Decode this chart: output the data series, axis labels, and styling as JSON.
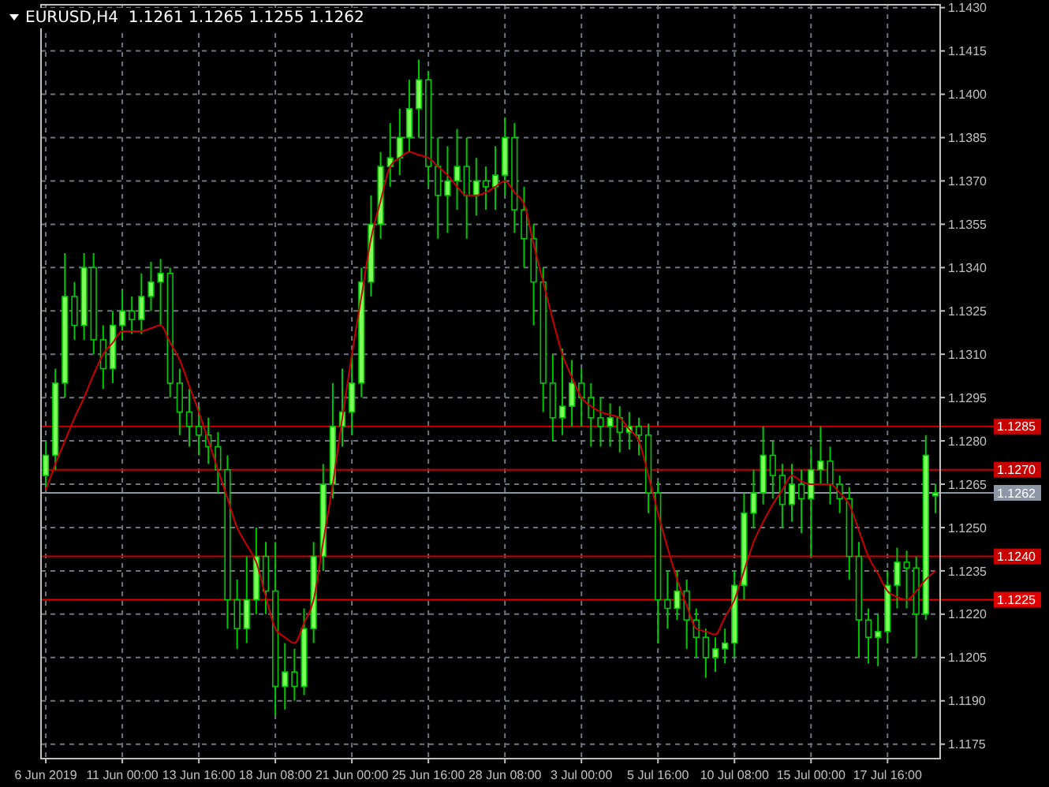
{
  "chart_data": {
    "type": "candlestick",
    "title": "EURUSD,H4  1.1261 1.1265 1.1255 1.1262",
    "categories": [
      "6 Jun 2019",
      null,
      null,
      null,
      null,
      null,
      null,
      null,
      "11 Jun 00:00",
      null,
      null,
      null,
      null,
      null,
      null,
      null,
      "13 Jun 16:00",
      null,
      null,
      null,
      null,
      null,
      null,
      null,
      "18 Jun 08:00",
      null,
      null,
      null,
      null,
      null,
      null,
      null,
      "21 Jun 00:00",
      null,
      null,
      null,
      null,
      null,
      null,
      null,
      "25 Jun 16:00",
      null,
      null,
      null,
      null,
      null,
      null,
      null,
      "28 Jun 08:00",
      null,
      null,
      null,
      null,
      null,
      null,
      null,
      "3 Jul 00:00",
      null,
      null,
      null,
      null,
      null,
      null,
      null,
      "5 Jul 16:00",
      null,
      null,
      null,
      null,
      null,
      null,
      null,
      "10 Jul 08:00",
      null,
      null,
      null,
      null,
      null,
      null,
      null,
      "15 Jul 00:00",
      null,
      null,
      null,
      null,
      null,
      null,
      null,
      "17 Jul 16:00",
      null,
      null,
      null,
      null,
      null
    ],
    "color": "#00c800",
    "ohlc": [
      [
        1.1268,
        1.128,
        1.1263,
        1.1275
      ],
      [
        1.1275,
        1.1305,
        1.127,
        1.13
      ],
      [
        1.13,
        1.1345,
        1.1295,
        1.133
      ],
      [
        1.133,
        1.1335,
        1.1315,
        1.132
      ],
      [
        1.132,
        1.1345,
        1.1315,
        1.134
      ],
      [
        1.134,
        1.1345,
        1.131,
        1.1315
      ],
      [
        1.1315,
        1.132,
        1.1298,
        1.1305
      ],
      [
        1.1305,
        1.1325,
        1.13,
        1.132
      ],
      [
        1.132,
        1.1332,
        1.1315,
        1.1325
      ],
      [
        1.1325,
        1.133,
        1.1317,
        1.1322
      ],
      [
        1.1322,
        1.1338,
        1.1317,
        1.133
      ],
      [
        1.133,
        1.1342,
        1.1325,
        1.1335
      ],
      [
        1.1335,
        1.1343,
        1.132,
        1.1338
      ],
      [
        1.1338,
        1.134,
        1.1295,
        1.13
      ],
      [
        1.13,
        1.1305,
        1.1282,
        1.129
      ],
      [
        1.129,
        1.1298,
        1.1278,
        1.1285
      ],
      [
        1.1285,
        1.1292,
        1.1275,
        1.1282
      ],
      [
        1.1282,
        1.1288,
        1.1272,
        1.1278
      ],
      [
        1.1278,
        1.1283,
        1.1262,
        1.127
      ],
      [
        1.127,
        1.1275,
        1.1215,
        1.1225
      ],
      [
        1.1225,
        1.1232,
        1.1208,
        1.1215
      ],
      [
        1.1215,
        1.124,
        1.121,
        1.1225
      ],
      [
        1.1225,
        1.125,
        1.122,
        1.124
      ],
      [
        1.124,
        1.1245,
        1.122,
        1.1228
      ],
      [
        1.1228,
        1.1245,
        1.1185,
        1.1195
      ],
      [
        1.1195,
        1.121,
        1.1187,
        1.12
      ],
      [
        1.12,
        1.1208,
        1.119,
        1.1195
      ],
      [
        1.1195,
        1.1222,
        1.1192,
        1.1215
      ],
      [
        1.1215,
        1.1245,
        1.121,
        1.124
      ],
      [
        1.124,
        1.1272,
        1.1235,
        1.1265
      ],
      [
        1.1265,
        1.13,
        1.126,
        1.1285
      ],
      [
        1.1285,
        1.1305,
        1.1278,
        1.129
      ],
      [
        1.129,
        1.131,
        1.1282,
        1.13
      ],
      [
        1.13,
        1.134,
        1.1295,
        1.1335
      ],
      [
        1.1335,
        1.1365,
        1.133,
        1.1355
      ],
      [
        1.1355,
        1.138,
        1.135,
        1.1375
      ],
      [
        1.1375,
        1.139,
        1.1368,
        1.1378
      ],
      [
        1.1378,
        1.1395,
        1.1372,
        1.1385
      ],
      [
        1.1385,
        1.1405,
        1.138,
        1.1395
      ],
      [
        1.1395,
        1.1412,
        1.1385,
        1.1405
      ],
      [
        1.1405,
        1.1408,
        1.1368,
        1.1375
      ],
      [
        1.1375,
        1.1385,
        1.135,
        1.1365
      ],
      [
        1.1365,
        1.1382,
        1.1352,
        1.137
      ],
      [
        1.137,
        1.1388,
        1.136,
        1.1375
      ],
      [
        1.1375,
        1.1385,
        1.135,
        1.1365
      ],
      [
        1.1365,
        1.1378,
        1.1358,
        1.137
      ],
      [
        1.137,
        1.1375,
        1.136,
        1.1368
      ],
      [
        1.1368,
        1.1382,
        1.136,
        1.1372
      ],
      [
        1.1372,
        1.1392,
        1.1365,
        1.1385
      ],
      [
        1.1385,
        1.139,
        1.1352,
        1.136
      ],
      [
        1.136,
        1.1368,
        1.134,
        1.135
      ],
      [
        1.135,
        1.1355,
        1.132,
        1.1335
      ],
      [
        1.1335,
        1.134,
        1.129,
        1.13
      ],
      [
        1.13,
        1.131,
        1.128,
        1.1288
      ],
      [
        1.1288,
        1.1312,
        1.1282,
        1.1292
      ],
      [
        1.1292,
        1.1308,
        1.1285,
        1.13
      ],
      [
        1.13,
        1.1305,
        1.1285,
        1.1295
      ],
      [
        1.1295,
        1.13,
        1.1278,
        1.1288
      ],
      [
        1.1288,
        1.1295,
        1.1278,
        1.1285
      ],
      [
        1.1285,
        1.1293,
        1.1278,
        1.1288
      ],
      [
        1.1288,
        1.1292,
        1.1276,
        1.1283
      ],
      [
        1.1283,
        1.129,
        1.1277,
        1.1285
      ],
      [
        1.1285,
        1.1288,
        1.1275,
        1.1282
      ],
      [
        1.1282,
        1.1286,
        1.1255,
        1.1262
      ],
      [
        1.1262,
        1.1266,
        1.121,
        1.1225
      ],
      [
        1.1225,
        1.1235,
        1.1215,
        1.1222
      ],
      [
        1.1222,
        1.1235,
        1.1218,
        1.1228
      ],
      [
        1.1228,
        1.1232,
        1.1208,
        1.1218
      ],
      [
        1.1218,
        1.1222,
        1.1205,
        1.1212
      ],
      [
        1.1212,
        1.1215,
        1.1198,
        1.1205
      ],
      [
        1.1205,
        1.1212,
        1.12,
        1.1208
      ],
      [
        1.1208,
        1.1215,
        1.1203,
        1.121
      ],
      [
        1.121,
        1.1235,
        1.1205,
        1.123
      ],
      [
        1.123,
        1.1262,
        1.1225,
        1.1255
      ],
      [
        1.1255,
        1.127,
        1.125,
        1.1262
      ],
      [
        1.1262,
        1.1285,
        1.1258,
        1.1275
      ],
      [
        1.1275,
        1.128,
        1.126,
        1.1268
      ],
      [
        1.1268,
        1.1272,
        1.125,
        1.1258
      ],
      [
        1.1258,
        1.1272,
        1.1252,
        1.1265
      ],
      [
        1.1265,
        1.127,
        1.1248,
        1.126
      ],
      [
        1.126,
        1.1278,
        1.124,
        1.127
      ],
      [
        1.127,
        1.1285,
        1.1265,
        1.1273
      ],
      [
        1.1273,
        1.1278,
        1.1258,
        1.1265
      ],
      [
        1.1265,
        1.1268,
        1.1255,
        1.126
      ],
      [
        1.126,
        1.1264,
        1.1232,
        1.124
      ],
      [
        1.124,
        1.1245,
        1.1205,
        1.1218
      ],
      [
        1.1218,
        1.1222,
        1.1203,
        1.1212
      ],
      [
        1.1212,
        1.122,
        1.1202,
        1.1214
      ],
      [
        1.1214,
        1.1235,
        1.121,
        1.123
      ],
      [
        1.123,
        1.1243,
        1.1222,
        1.1238
      ],
      [
        1.1238,
        1.1242,
        1.1222,
        1.1236
      ],
      [
        1.1236,
        1.124,
        1.1205,
        1.122
      ],
      [
        1.122,
        1.1282,
        1.1218,
        1.1275
      ],
      [
        1.1261,
        1.1265,
        1.1255,
        1.1262
      ]
    ],
    "series": [
      {
        "type": "line",
        "color": "#c80000",
        "values": [
          1.1263,
          1.1272,
          1.128,
          1.1288,
          1.1295,
          1.1303,
          1.131,
          1.1314,
          1.1318,
          1.1318,
          1.1318,
          1.1319,
          1.132,
          1.1314,
          1.1308,
          1.1299,
          1.129,
          1.128,
          1.127,
          1.126,
          1.125,
          1.1244,
          1.1238,
          1.1226,
          1.1215,
          1.1212,
          1.121,
          1.1217,
          1.1225,
          1.1245,
          1.1265,
          1.1288,
          1.131,
          1.133,
          1.135,
          1.1363,
          1.1375,
          1.1378,
          1.138,
          1.1379,
          1.1378,
          1.1375,
          1.1372,
          1.1368,
          1.1365,
          1.1365,
          1.1366,
          1.1368,
          1.137,
          1.1366,
          1.1362,
          1.1348,
          1.1335,
          1.1322,
          1.131,
          1.1302,
          1.1295,
          1.1292,
          1.129,
          1.1289,
          1.1288,
          1.1284,
          1.128,
          1.1268,
          1.1255,
          1.1243,
          1.1232,
          1.1223,
          1.1215,
          1.1214,
          1.1213,
          1.1219,
          1.1225,
          1.1235,
          1.1245,
          1.1252,
          1.1258,
          1.1263,
          1.1268,
          1.1266,
          1.1265,
          1.1265,
          1.1265,
          1.1262,
          1.1258,
          1.1249,
          1.124,
          1.1234,
          1.1228,
          1.1226,
          1.1225,
          1.1228,
          1.1232,
          1.1235
        ]
      }
    ],
    "ylim": [
      1.117,
      1.1431
    ],
    "yticks": [
      1.1175,
      {
        "value": 1.119,
        "label": "1.1190"
      },
      1.1205,
      {
        "value": 1.122,
        "label": "1.1220"
      },
      1.1235,
      {
        "value": 1.125,
        "label": "1.1250"
      },
      1.1265,
      {
        "value": 1.128,
        "label": "1.1280"
      },
      1.1295,
      {
        "value": 1.131,
        "label": "1.1310"
      },
      1.1325,
      {
        "value": 1.134,
        "label": "1.1340"
      },
      1.1355,
      {
        "value": 1.137,
        "label": "1.1370"
      },
      1.1385,
      {
        "value": 1.14,
        "label": "1.1400"
      },
      1.1415,
      {
        "value": 1.143,
        "label": "1.1430"
      }
    ],
    "ref_lines": [
      {
        "axis": "y",
        "value": 1.1285,
        "label": "1.1285",
        "color": "#c80000"
      },
      {
        "axis": "y",
        "value": 1.127,
        "label": "1.1270",
        "color": "#c80000"
      },
      {
        "axis": "y",
        "value": 1.124,
        "label": "1.1240",
        "color": "#c80000"
      },
      {
        "axis": "y",
        "value": 1.1225,
        "label": "1.1225",
        "color": "#e00000"
      },
      {
        "axis": "y",
        "value": 1.1262,
        "label": "1.1262",
        "color": "#8c96a5"
      }
    ],
    "grid": true
  }
}
